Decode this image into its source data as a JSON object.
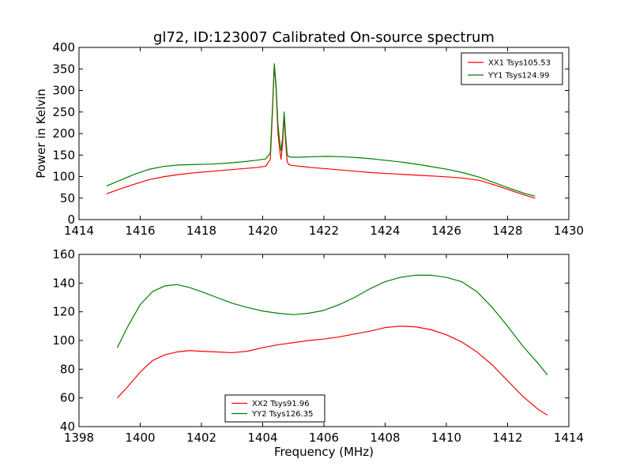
{
  "chart_data": [
    {
      "type": "line",
      "title": "gl72, ID:123007 Calibrated On-source spectrum",
      "xlabel": "",
      "ylabel": "Power in Kelvin",
      "xlim": [
        1414,
        1430
      ],
      "ylim": [
        0,
        400
      ],
      "xticks": [
        "1414",
        "1416",
        "1418",
        "1420",
        "1422",
        "1424",
        "1426",
        "1428",
        "1430"
      ],
      "yticks": [
        "0",
        "50",
        "100",
        "150",
        "200",
        "250",
        "300",
        "350",
        "400"
      ],
      "grid": false,
      "legend_position": "top-right",
      "series": [
        {
          "name": "XX1 Tsys105.53",
          "color": "#ff0000",
          "x": [
            1414.9,
            1415.3,
            1415.8,
            1416.3,
            1416.8,
            1417.3,
            1417.8,
            1418.3,
            1418.8,
            1419.3,
            1419.8,
            1420.1,
            1420.25,
            1420.32,
            1420.38,
            1420.44,
            1420.5,
            1420.55,
            1420.6,
            1420.65,
            1420.7,
            1420.75,
            1420.8,
            1420.85,
            1420.95,
            1421.2,
            1421.6,
            1422.1,
            1422.6,
            1423.1,
            1423.6,
            1424.1,
            1424.6,
            1425.1,
            1425.6,
            1426.1,
            1426.6,
            1427.1,
            1427.6,
            1428.1,
            1428.6,
            1428.9
          ],
          "y": [
            60,
            70,
            82,
            93,
            100,
            105,
            109,
            112,
            115,
            118,
            121,
            124,
            140,
            250,
            360,
            300,
            200,
            165,
            140,
            175,
            240,
            180,
            135,
            128,
            126,
            124,
            121,
            118,
            115,
            112,
            109,
            107,
            105,
            103,
            101,
            99,
            96,
            91,
            80,
            68,
            56,
            50
          ]
        },
        {
          "name": "YY1 Tsys124.99",
          "color": "#008000",
          "x": [
            1414.9,
            1415.3,
            1415.8,
            1416.3,
            1416.8,
            1417.3,
            1417.8,
            1418.3,
            1418.8,
            1419.3,
            1419.8,
            1420.1,
            1420.25,
            1420.32,
            1420.38,
            1420.44,
            1420.5,
            1420.55,
            1420.6,
            1420.65,
            1420.7,
            1420.75,
            1420.8,
            1420.85,
            1420.95,
            1421.2,
            1421.6,
            1422.1,
            1422.6,
            1423.1,
            1423.6,
            1424.1,
            1424.6,
            1425.1,
            1425.6,
            1426.1,
            1426.6,
            1427.1,
            1427.6,
            1428.1,
            1428.6,
            1428.9
          ],
          "y": [
            78,
            90,
            105,
            117,
            124,
            127,
            128,
            129,
            131,
            134,
            138,
            141,
            155,
            260,
            362,
            310,
            220,
            185,
            160,
            190,
            250,
            195,
            152,
            146,
            145,
            145,
            146,
            147,
            146,
            144,
            141,
            137,
            133,
            128,
            122,
            116,
            108,
            98,
            85,
            72,
            60,
            55
          ]
        }
      ]
    },
    {
      "type": "line",
      "title": "",
      "xlabel": "Frequency (MHz)",
      "ylabel": "",
      "xlim": [
        1398,
        1414
      ],
      "ylim": [
        40,
        160
      ],
      "xticks": [
        "1398",
        "1400",
        "1402",
        "1404",
        "1406",
        "1408",
        "1410",
        "1412",
        "1414"
      ],
      "yticks": [
        "40",
        "60",
        "80",
        "100",
        "120",
        "140",
        "160"
      ],
      "grid": false,
      "legend_position": "bottom-center",
      "series": [
        {
          "name": "XX2 Tsys91.96",
          "color": "#ff0000",
          "x": [
            1399.25,
            1399.6,
            1400.0,
            1400.4,
            1400.8,
            1401.2,
            1401.6,
            1402.0,
            1402.5,
            1403.0,
            1403.5,
            1404.0,
            1404.5,
            1405.0,
            1405.5,
            1406.0,
            1406.5,
            1407.0,
            1407.5,
            1408.0,
            1408.5,
            1409.0,
            1409.5,
            1410.0,
            1410.5,
            1411.0,
            1411.5,
            1412.0,
            1412.5,
            1413.0,
            1413.3
          ],
          "y": [
            60,
            68,
            78,
            86,
            90,
            92,
            93,
            92.5,
            92,
            91.5,
            92.5,
            95,
            97,
            98.5,
            100,
            101,
            102.5,
            104.5,
            106.5,
            109,
            110,
            109.5,
            107.5,
            104,
            99,
            92,
            83,
            72,
            61,
            52,
            48
          ]
        },
        {
          "name": "YY2 Tsys126.35",
          "color": "#008000",
          "x": [
            1399.25,
            1399.6,
            1400.0,
            1400.4,
            1400.8,
            1401.2,
            1401.6,
            1402.0,
            1402.5,
            1403.0,
            1403.5,
            1404.0,
            1404.5,
            1405.0,
            1405.5,
            1406.0,
            1406.5,
            1407.0,
            1407.5,
            1408.0,
            1408.5,
            1409.0,
            1409.5,
            1410.0,
            1410.5,
            1411.0,
            1411.5,
            1412.0,
            1412.5,
            1413.0,
            1413.3
          ],
          "y": [
            95,
            110,
            125,
            134,
            138,
            139,
            137,
            134,
            130,
            126,
            123,
            120.5,
            119,
            118,
            119,
            121,
            125,
            130,
            136,
            141,
            144,
            145.5,
            145.5,
            144,
            141,
            134,
            123,
            110,
            96,
            84,
            76
          ]
        }
      ]
    }
  ]
}
